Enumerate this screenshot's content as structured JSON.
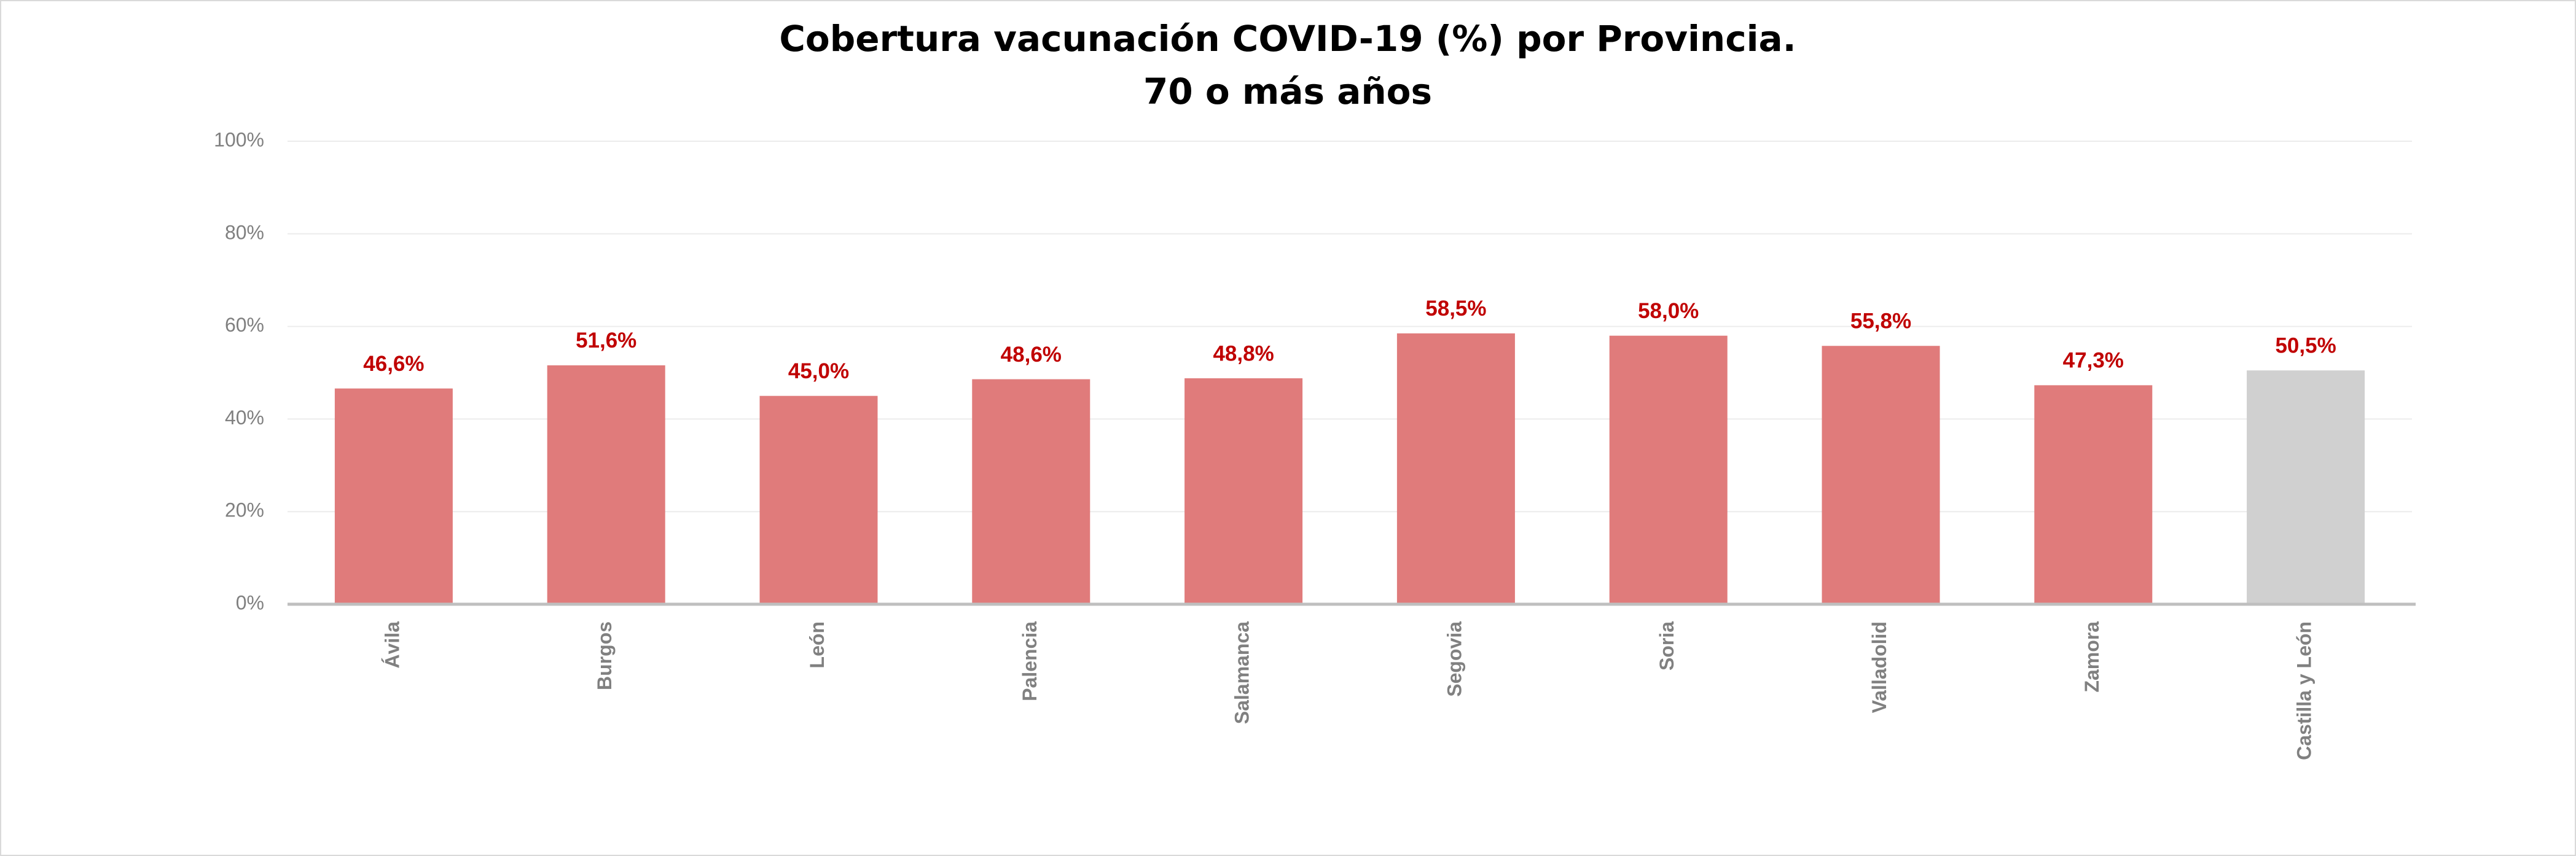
{
  "chart_data": {
    "type": "bar",
    "title": "Cobertura vacunación COVID-19  (%) por Provincia.",
    "subtitle": "70 o más años",
    "categories": [
      "Ávila",
      "Burgos",
      "León",
      "Palencia",
      "Salamanca",
      "Segovia",
      "Soria",
      "Valladolid",
      "Zamora",
      "Castilla y León"
    ],
    "values": [
      46.6,
      51.6,
      45.0,
      48.6,
      48.8,
      58.5,
      58.0,
      55.8,
      47.3,
      50.5
    ],
    "value_labels": [
      "46,6%",
      "51,6%",
      "45,0%",
      "48,6%",
      "48,8%",
      "58,5%",
      "58,0%",
      "55,8%",
      "47,3%",
      "50,5%"
    ],
    "colors": [
      "#e07b7b",
      "#e07b7b",
      "#e07b7b",
      "#e07b7b",
      "#e07b7b",
      "#e07b7b",
      "#e07b7b",
      "#e07b7b",
      "#e07b7b",
      "#d0d0d0"
    ],
    "ylim": [
      0,
      100
    ],
    "yticks": [
      {
        "value": 0,
        "label": "0%"
      },
      {
        "value": 20,
        "label": "20%"
      },
      {
        "value": 40,
        "label": "40%"
      },
      {
        "value": 60,
        "label": "60%"
      },
      {
        "value": 80,
        "label": "80%"
      },
      {
        "value": 100,
        "label": "100%"
      }
    ],
    "grid": true
  }
}
